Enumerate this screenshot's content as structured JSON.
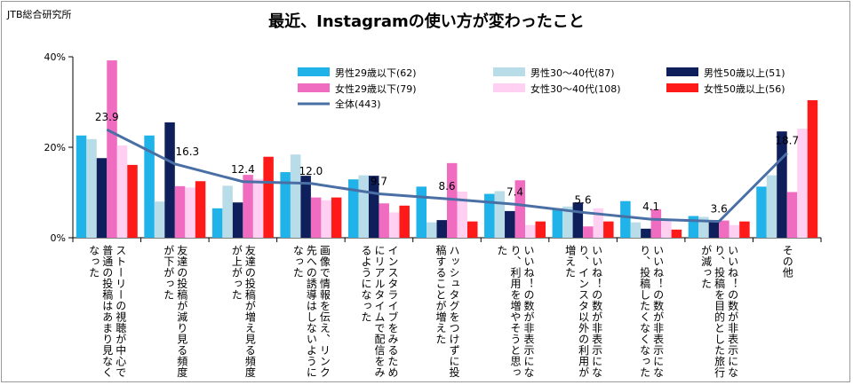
{
  "source": "JTB総合研究所",
  "chart_data": {
    "type": "bar",
    "title": "最近、Instagramの使い方が変わったこと",
    "ylim": [
      0,
      40
    ],
    "yticks": [
      "0%",
      "20%",
      "40%"
    ],
    "categories": [
      "ストーリーの視聴が中心で普通の投稿はあまり見なくなった",
      "友達の投稿が減り見る頻度が下がった",
      "友達の投稿が増え見る頻度が上がった",
      "画像で情報を伝え、リンク先への誘導はしないようになった",
      "インスタライブをみるためにリアルタイムで配信をみるようになった",
      "ハッシュタグをつけずに投稿することが増えた",
      "いいね！の数が非表示になり、利用を増やそうと思った",
      "いいね！の数が非表示になり、インスタ以外の利用が増えた",
      "いいね！の数が非表示になり、投稿したくなくなった",
      "いいね！の数が非表示になり、投稿を目的とした旅行が減った",
      "その他"
    ],
    "series": [
      {
        "name": "男性29歳以下(62)",
        "color": "#1fb3ea",
        "values": [
          22.6,
          22.6,
          6.5,
          14.5,
          12.9,
          11.3,
          9.7,
          6.5,
          8.1,
          4.8,
          11.3
        ]
      },
      {
        "name": "男性30～40代(87)",
        "color": "#b8dde8",
        "values": [
          21.8,
          8.0,
          11.5,
          18.4,
          13.8,
          3.4,
          10.3,
          6.9,
          3.4,
          4.6,
          13.8
        ]
      },
      {
        "name": "男性50歳以上(51)",
        "color": "#0f1f5c",
        "values": [
          17.6,
          25.5,
          7.8,
          13.7,
          13.7,
          3.9,
          5.9,
          7.8,
          2.0,
          3.9,
          23.5
        ]
      },
      {
        "name": "女性29歳以下(79)",
        "color": "#f06cc0",
        "values": [
          39.2,
          11.4,
          13.9,
          8.9,
          7.6,
          16.5,
          12.7,
          2.5,
          6.3,
          3.8,
          10.1
        ]
      },
      {
        "name": "女性30～40代(108)",
        "color": "#ffd0f2",
        "values": [
          20.4,
          11.1,
          13.0,
          8.3,
          5.6,
          10.2,
          2.8,
          6.5,
          3.7,
          2.8,
          24.1
        ]
      },
      {
        "name": "女性50歳以上(56)",
        "color": "#ff1a1a",
        "values": [
          16.1,
          12.5,
          17.9,
          8.9,
          7.1,
          3.6,
          3.6,
          3.6,
          1.8,
          3.6,
          30.4
        ]
      }
    ],
    "line": {
      "name": "全体(443)",
      "color": "#4a6fa5",
      "values": [
        23.9,
        16.3,
        12.4,
        12.0,
        9.7,
        8.6,
        7.4,
        5.6,
        4.1,
        3.6,
        18.7
      ],
      "labels": [
        "23.9",
        "16.3",
        "12.4",
        "12.0",
        "9.7",
        "8.6",
        "7.4",
        "5.6",
        "4.1",
        "3.6",
        "18.7"
      ]
    }
  }
}
